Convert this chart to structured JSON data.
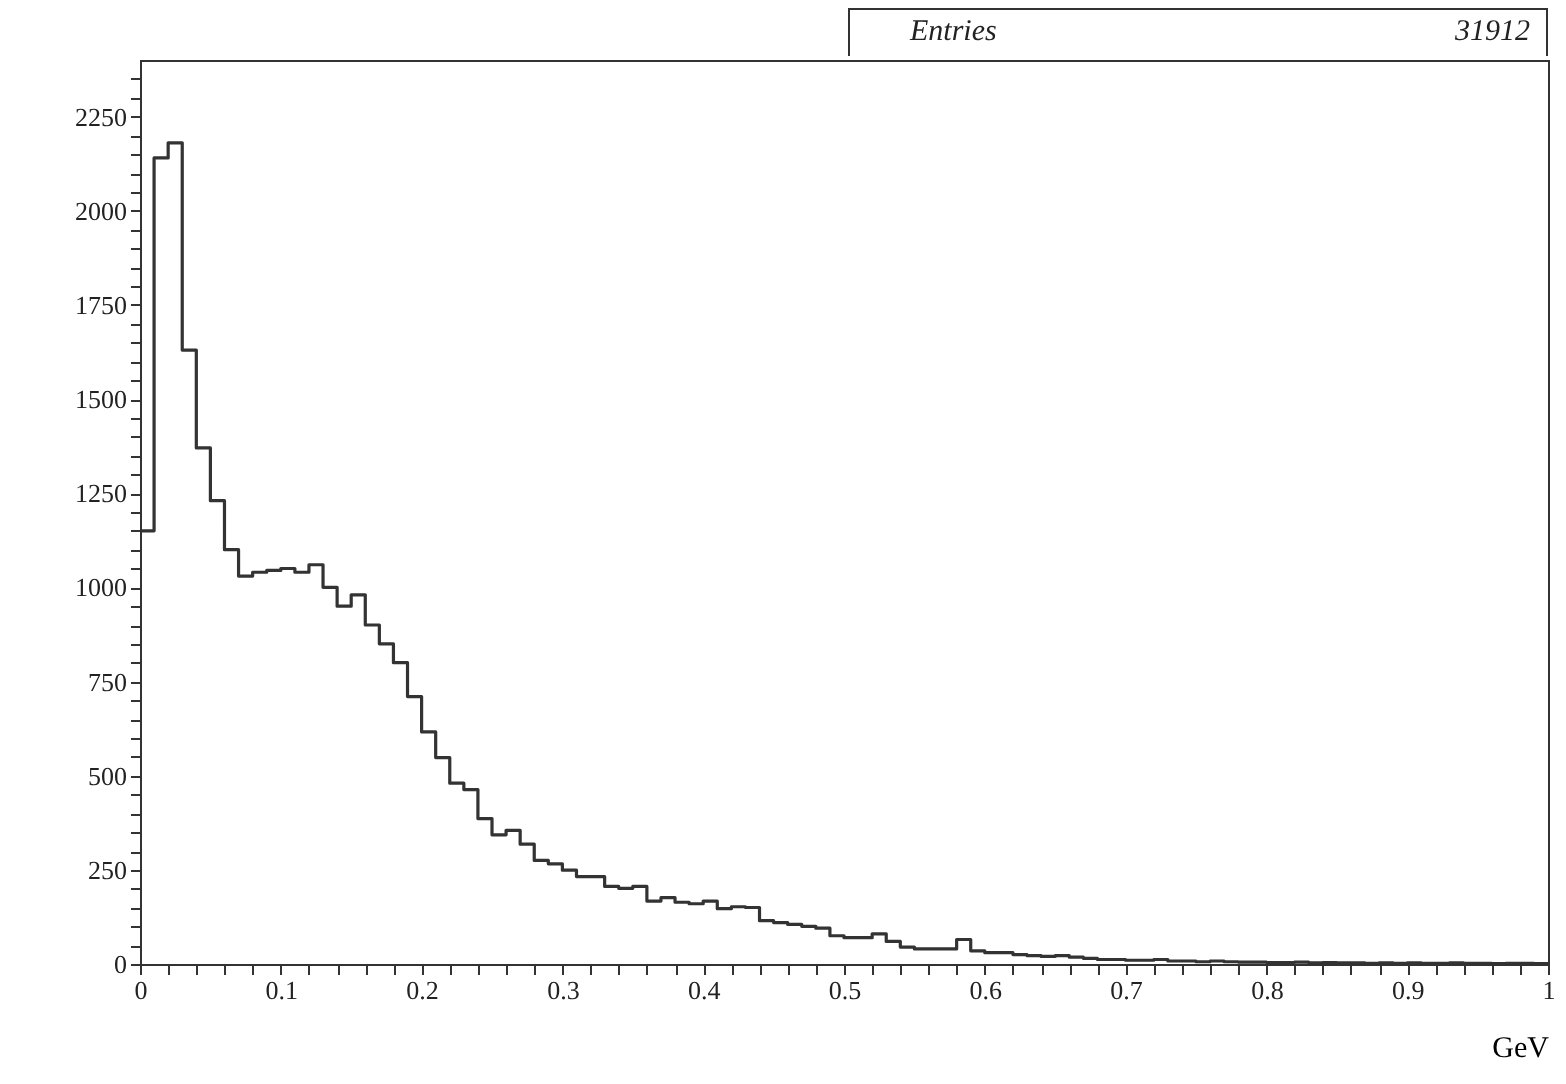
{
  "chart_data": {
    "type": "histogram",
    "xlabel": "GeV",
    "color": "#333333",
    "grid": false,
    "annotations": [
      "Entries",
      "31912"
    ],
    "bins": [
      0,
      0.01,
      0.02,
      0.03,
      0.04,
      0.05,
      0.06,
      0.07,
      0.08,
      0.09,
      0.1,
      0.11,
      0.12,
      0.13,
      0.14,
      0.15,
      0.16,
      0.17,
      0.18,
      0.19,
      0.2,
      0.21,
      0.22,
      0.23,
      0.24,
      0.25,
      0.26,
      0.27,
      0.28,
      0.29,
      0.3,
      0.31,
      0.32,
      0.33,
      0.34,
      0.35,
      0.36,
      0.37,
      0.38,
      0.39,
      0.4,
      0.41,
      0.42,
      0.43,
      0.44,
      0.45,
      0.46,
      0.47,
      0.48,
      0.49,
      0.5,
      0.51,
      0.52,
      0.53,
      0.54,
      0.55,
      0.56,
      0.57,
      0.58,
      0.59,
      0.6,
      0.61,
      0.62,
      0.63,
      0.64,
      0.65,
      0.66,
      0.67,
      0.68,
      0.69,
      0.7,
      0.71,
      0.72,
      0.73,
      0.74,
      0.75,
      0.76,
      0.77,
      0.78,
      0.79,
      0.8,
      0.81,
      0.82,
      0.83,
      0.84,
      0.85,
      0.86,
      0.87,
      0.88,
      0.89,
      0.9,
      0.91,
      0.92,
      0.93,
      0.94,
      0.95,
      0.96,
      0.97,
      0.98,
      0.99,
      1
    ],
    "values": [
      1150,
      2140,
      2180,
      1630,
      1370,
      1230,
      1100,
      1030,
      1040,
      1045,
      1050,
      1040,
      1060,
      1000,
      950,
      980,
      900,
      850,
      800,
      710,
      616,
      548,
      480,
      463,
      386,
      343,
      355,
      318,
      275,
      266,
      249,
      232,
      232,
      206,
      201,
      206,
      167,
      176,
      164,
      160,
      167,
      147,
      152,
      150,
      115,
      110,
      105,
      100,
      95,
      75,
      70,
      70,
      80,
      60,
      45,
      40,
      40,
      40,
      65,
      35,
      30,
      30,
      25,
      22,
      20,
      22,
      18,
      15,
      12,
      12,
      10,
      10,
      12,
      8,
      8,
      6,
      8,
      6,
      5,
      5,
      4,
      4,
      5,
      3,
      4,
      3,
      3,
      2,
      3,
      2,
      3,
      2,
      2,
      3,
      2,
      2,
      1,
      2,
      2,
      1
    ],
    "xlim": [
      0,
      1
    ],
    "xticks": [
      0,
      {
        "value": 0.02,
        "label": null
      },
      {
        "value": 0.04,
        "label": null
      },
      {
        "value": 0.06,
        "label": null
      },
      {
        "value": 0.08,
        "label": null
      },
      0.1,
      {
        "value": 0.12,
        "label": null
      },
      {
        "value": 0.14,
        "label": null
      },
      {
        "value": 0.16,
        "label": null
      },
      {
        "value": 0.18,
        "label": null
      },
      0.2,
      {
        "value": 0.22,
        "label": null
      },
      {
        "value": 0.24,
        "label": null
      },
      {
        "value": 0.26,
        "label": null
      },
      {
        "value": 0.28,
        "label": null
      },
      0.3,
      {
        "value": 0.32,
        "label": null
      },
      {
        "value": 0.34,
        "label": null
      },
      {
        "value": 0.36,
        "label": null
      },
      {
        "value": 0.38,
        "label": null
      },
      0.4,
      {
        "value": 0.42,
        "label": null
      },
      {
        "value": 0.44,
        "label": null
      },
      {
        "value": 0.46,
        "label": null
      },
      {
        "value": 0.48,
        "label": null
      },
      0.5,
      {
        "value": 0.52,
        "label": null
      },
      {
        "value": 0.54,
        "label": null
      },
      {
        "value": 0.56,
        "label": null
      },
      {
        "value": 0.58,
        "label": null
      },
      0.6,
      {
        "value": 0.62,
        "label": null
      },
      {
        "value": 0.64,
        "label": null
      },
      {
        "value": 0.66,
        "label": null
      },
      {
        "value": 0.68,
        "label": null
      },
      0.7,
      {
        "value": 0.72,
        "label": null
      },
      {
        "value": 0.74,
        "label": null
      },
      {
        "value": 0.76,
        "label": null
      },
      {
        "value": 0.78,
        "label": null
      },
      0.8,
      {
        "value": 0.82,
        "label": null
      },
      {
        "value": 0.84,
        "label": null
      },
      {
        "value": 0.86,
        "label": null
      },
      {
        "value": 0.88,
        "label": null
      },
      0.9,
      {
        "value": 0.92,
        "label": null
      },
      {
        "value": 0.94,
        "label": null
      },
      {
        "value": 0.96,
        "label": null
      },
      {
        "value": 0.98,
        "label": null
      },
      1
    ],
    "ylim": [
      0,
      2400
    ],
    "yticks": [
      0,
      {
        "value": 50,
        "label": null
      },
      {
        "value": 100,
        "label": null
      },
      {
        "value": 150,
        "label": null
      },
      {
        "value": 200,
        "label": null
      },
      250,
      {
        "value": 300,
        "label": null
      },
      {
        "value": 350,
        "label": null
      },
      {
        "value": 400,
        "label": null
      },
      {
        "value": 450,
        "label": null
      },
      500,
      {
        "value": 550,
        "label": null
      },
      {
        "value": 600,
        "label": null
      },
      {
        "value": 650,
        "label": null
      },
      {
        "value": 700,
        "label": null
      },
      750,
      {
        "value": 800,
        "label": null
      },
      {
        "value": 850,
        "label": null
      },
      {
        "value": 900,
        "label": null
      },
      {
        "value": 950,
        "label": null
      },
      1000,
      {
        "value": 1050,
        "label": null
      },
      {
        "value": 1100,
        "label": null
      },
      {
        "value": 1150,
        "label": null
      },
      {
        "value": 1200,
        "label": null
      },
      1250,
      {
        "value": 1300,
        "label": null
      },
      {
        "value": 1350,
        "label": null
      },
      {
        "value": 1400,
        "label": null
      },
      {
        "value": 1450,
        "label": null
      },
      1500,
      {
        "value": 1550,
        "label": null
      },
      {
        "value": 1600,
        "label": null
      },
      {
        "value": 1650,
        "label": null
      },
      {
        "value": 1700,
        "label": null
      },
      1750,
      {
        "value": 1800,
        "label": null
      },
      {
        "value": 1850,
        "label": null
      },
      {
        "value": 1900,
        "label": null
      },
      {
        "value": 1950,
        "label": null
      },
      2000,
      {
        "value": 2050,
        "label": null
      },
      {
        "value": 2100,
        "label": null
      },
      {
        "value": 2150,
        "label": null
      },
      {
        "value": 2200,
        "label": null
      },
      2250,
      {
        "value": 2300,
        "label": null
      },
      {
        "value": 2350,
        "label": null
      }
    ]
  }
}
